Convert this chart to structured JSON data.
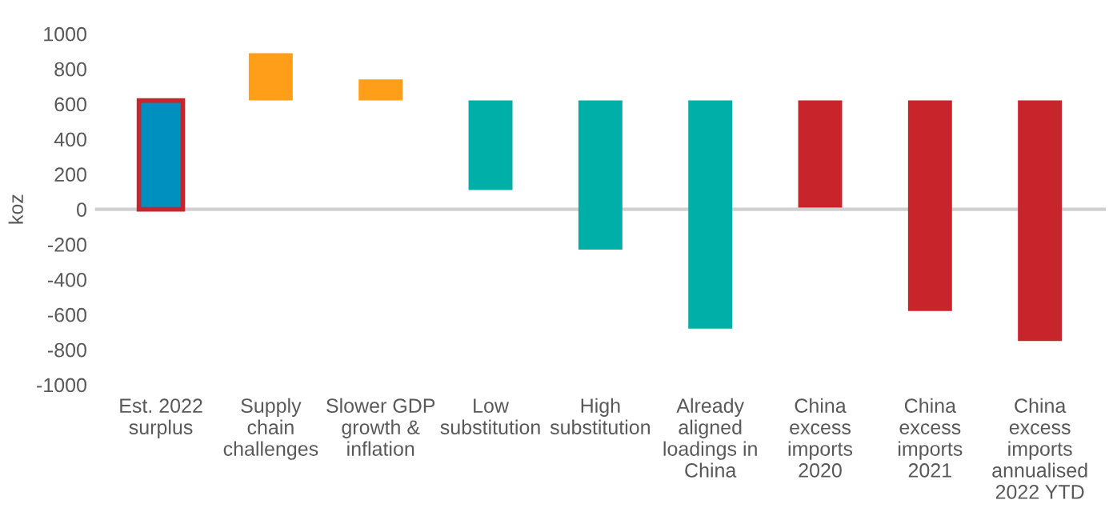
{
  "chart_data": {
    "type": "bar",
    "ylabel": "koz",
    "categories": [
      "Est. 2022\nsurplus",
      "Supply\nchain\nchallenges",
      "Slower GDP\ngrowth &\ninflation",
      "Low\nsubstitution",
      "High\nsubstitution",
      "Already\naligned\nloadings in\nChina",
      "China\nexcess\nimports\n2020",
      "China\nexcess\nimports\n2021",
      "China\nexcess\nimports\nannualised\n2022 YTD"
    ],
    "base": [
      0,
      620,
      620,
      620,
      620,
      620,
      620,
      620,
      620
    ],
    "values": [
      620,
      270,
      120,
      -510,
      -850,
      -1300,
      -610,
      -1200,
      -1370
    ],
    "colors": [
      "#0090c0",
      "#ff9e18",
      "#ff9e18",
      "#00b0a8",
      "#00b0a8",
      "#00b0a8",
      "#c8242b",
      "#c8242b",
      "#c8242b"
    ],
    "ylim": [
      -1000,
      1000
    ],
    "yticks": [
      -1000,
      -800,
      -600,
      -400,
      -200,
      0,
      200,
      400,
      600,
      800,
      1000
    ],
    "ref_lines": [
      {
        "axis": "y",
        "value": 0,
        "color": "#d0d0d0"
      }
    ]
  }
}
